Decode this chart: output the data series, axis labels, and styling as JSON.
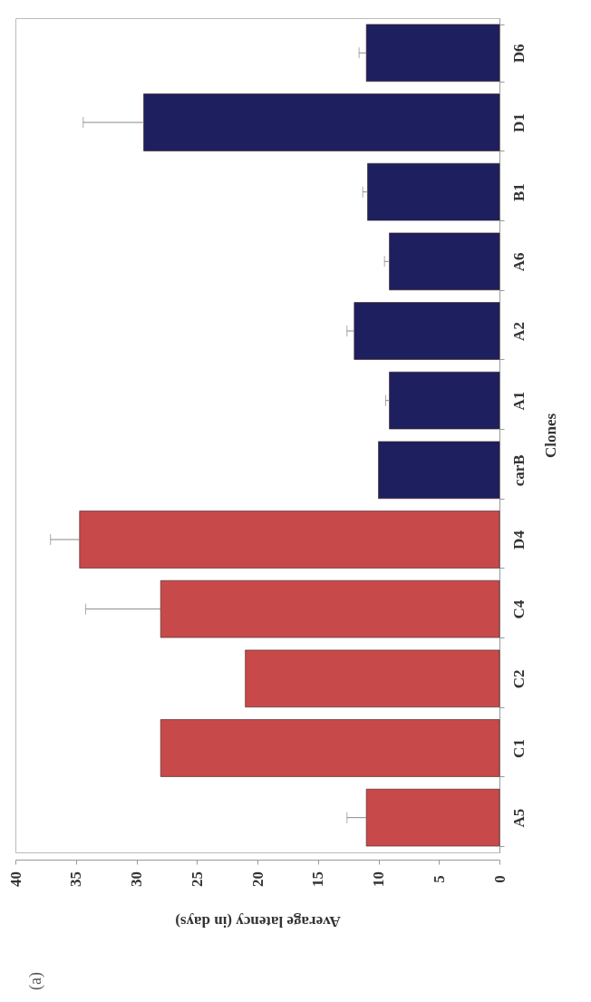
{
  "chart_data": {
    "type": "bar",
    "orientation": "horizontal",
    "xlabel": "Average latency (in days)",
    "ylabel": "Clones",
    "annotations": [
      "(a)"
    ],
    "categories": [
      "D6",
      "D1",
      "B1",
      "A6",
      "A2",
      "A1",
      "carB",
      null,
      "D4",
      "C4",
      "C2",
      "C1",
      "A5"
    ],
    "values": [
      11,
      29.4,
      10.9,
      9.1,
      12,
      9.1,
      10,
      null,
      34.7,
      28,
      21,
      28,
      11
    ],
    "colors": [
      "#1e1f5e",
      "#1e1f5e",
      "#1e1f5e",
      "#1e1f5e",
      "#1e1f5e",
      "#1e1f5e",
      "#1e1f5e",
      "#ffffff",
      "#c8494a",
      "#c8494a",
      "#c8494a",
      "#c8494a",
      "#c8494a"
    ],
    "errors": [
      [
        11,
        11.6
      ],
      [
        29.4,
        34.4
      ],
      [
        10.9,
        11.3
      ],
      [
        9.1,
        9.5
      ],
      [
        12,
        12.6
      ],
      [
        9.1,
        9.4
      ],
      null,
      null,
      [
        34.7,
        37.1
      ],
      [
        28,
        34.2
      ],
      null,
      null,
      [
        11,
        12.6
      ]
    ],
    "xlim": [
      40,
      0
    ],
    "xticks": [
      0,
      5,
      10,
      15,
      20,
      25,
      30,
      35,
      40
    ]
  }
}
